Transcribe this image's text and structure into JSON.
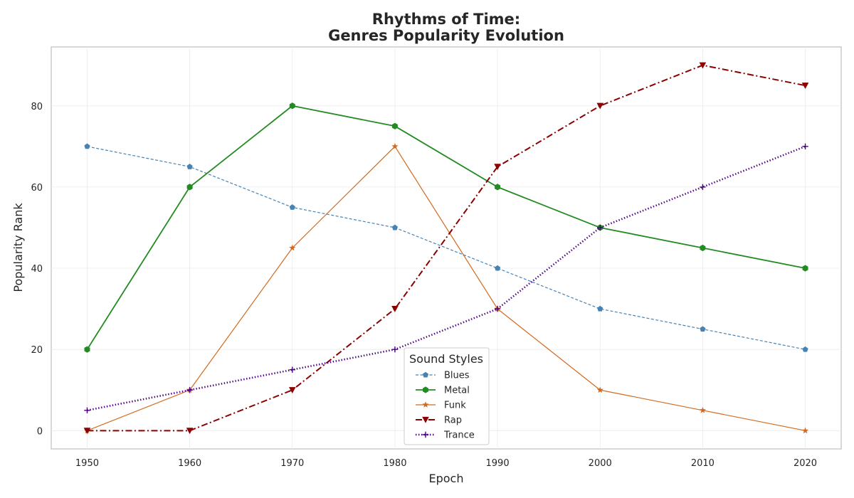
{
  "chart_data": {
    "type": "line",
    "title_line1": "Rhythms of Time:",
    "title_line2": "Genres Popularity Evolution",
    "xlabel": "Epoch",
    "ylabel": "Popularity Rank",
    "x": [
      1950,
      1960,
      1970,
      1980,
      1990,
      2000,
      2010,
      2020
    ],
    "x_tick_labels": [
      "1950",
      "1960",
      "1970",
      "1980",
      "1990",
      "2000",
      "2010",
      "2020"
    ],
    "y_ticks": [
      0,
      20,
      40,
      60,
      80
    ],
    "y_tick_labels": [
      "0",
      "20",
      "40",
      "60",
      "80"
    ],
    "xlim": [
      1946.5,
      2023.5
    ],
    "ylim": [
      -4.5,
      94.5
    ],
    "grid": true,
    "legend": {
      "title": "Sound Styles",
      "position": "lower-center"
    },
    "series": [
      {
        "name": "Blues",
        "values": [
          70,
          65,
          55,
          50,
          40,
          30,
          25,
          20
        ],
        "color": "#4682b4",
        "dash": "dashed",
        "marker": "pentagon"
      },
      {
        "name": "Metal",
        "values": [
          20,
          60,
          80,
          75,
          60,
          50,
          45,
          40
        ],
        "color": "#228b22",
        "dash": "solid",
        "marker": "hexagon"
      },
      {
        "name": "Funk",
        "values": [
          0,
          10,
          45,
          70,
          30,
          10,
          5,
          0
        ],
        "color": "#d2691e",
        "dash": "solid",
        "marker": "star"
      },
      {
        "name": "Rap",
        "values": [
          0,
          0,
          10,
          30,
          65,
          80,
          90,
          85
        ],
        "color": "#8b0000",
        "dash": "dashdot",
        "marker": "triangle-down"
      },
      {
        "name": "Trance",
        "values": [
          5,
          10,
          15,
          20,
          30,
          50,
          60,
          70
        ],
        "color": "#4b0082",
        "dash": "dotted",
        "marker": "plus"
      }
    ]
  }
}
